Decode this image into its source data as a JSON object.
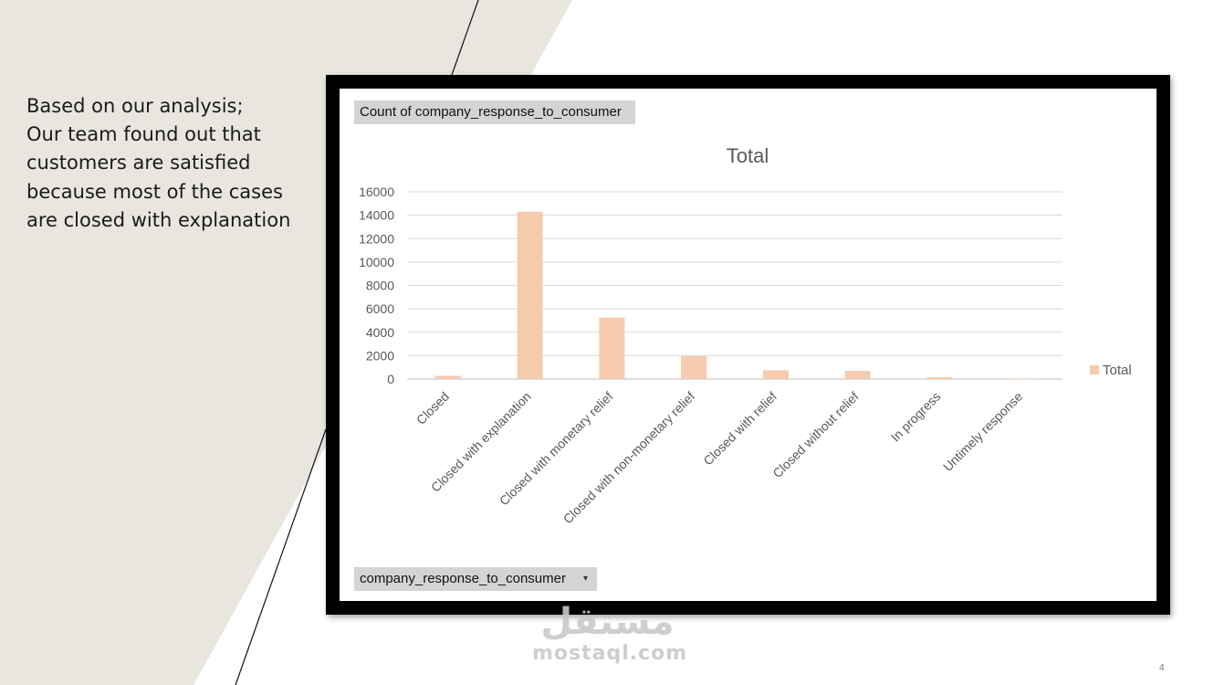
{
  "slide": {
    "body_text": "Based on our analysis;\nOur team found out that customers are satisfied because most of the cases are closed with explanation",
    "page_number": "4",
    "background_shape_color": "#e8e6df",
    "watermark": {
      "arabic": "مستقل",
      "latin": "mostaql.com"
    }
  },
  "pivot": {
    "values_field": "Count of company_response_to_consumer",
    "axis_field": "company_response_to_consumer",
    "axis_dropdown_icon": "dropdown-arrow-icon"
  },
  "chart_data": {
    "type": "bar",
    "title": "Total",
    "categories": [
      "Closed",
      "Closed with explanation",
      "Closed with monetary relief",
      "Closed with non-monetary relief",
      "Closed with relief",
      "Closed without relief",
      "In progress",
      "Untimely response"
    ],
    "series": [
      {
        "name": "Total",
        "values": [
          270,
          14300,
          5250,
          1950,
          750,
          700,
          150,
          20
        ],
        "color": "#f6cbad"
      }
    ],
    "ylim": [
      0,
      16000
    ],
    "yticks": [
      0,
      2000,
      4000,
      6000,
      8000,
      10000,
      12000,
      14000,
      16000
    ],
    "grid": true,
    "legend_position": "right"
  }
}
